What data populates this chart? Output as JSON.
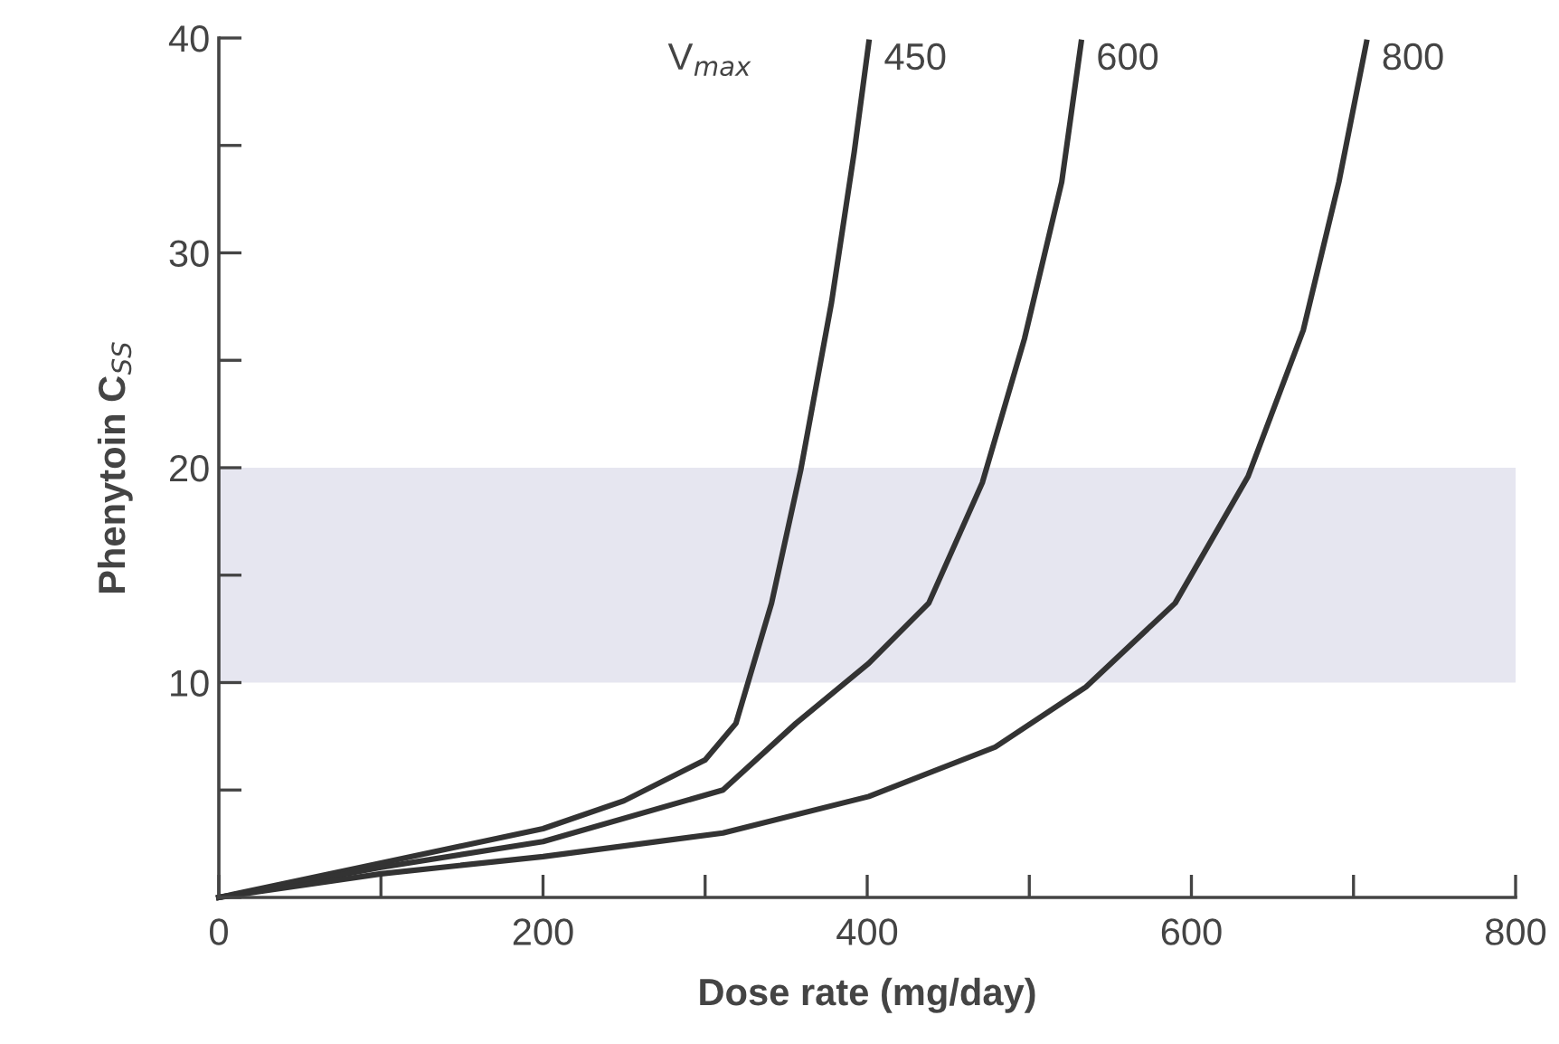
{
  "chart_data": {
    "type": "line",
    "xlabel": "Dose rate (mg/day)",
    "ylabel": "Phenytoin C$_{SS}$",
    "annotations": [
      "V$_{max}$"
    ],
    "xlim": [
      0,
      800
    ],
    "ylim": [
      0,
      40
    ],
    "xticks": [
      0,
      {
        "value": 100,
        "label": null
      },
      200,
      {
        "value": 300,
        "label": null
      },
      400,
      {
        "value": 500,
        "label": null
      },
      600,
      {
        "value": 700,
        "label": null
      },
      800
    ],
    "yticks": [
      {
        "value": 0,
        "label": null
      },
      {
        "value": 5,
        "label": null
      },
      10,
      {
        "value": 15,
        "label": null
      },
      20,
      {
        "value": 25,
        "label": null
      },
      30,
      {
        "value": 35,
        "label": null
      },
      40
    ],
    "grid": false,
    "legend": false,
    "marker": "none",
    "line_style": "solid",
    "bands": [
      {
        "axis": "y",
        "from": 10,
        "to": 20,
        "color": "#e6e6f0"
      }
    ],
    "series": [
      {
        "name": "450",
        "color": "#333333",
        "x": [
          0,
          100,
          200,
          250,
          300,
          319,
          341,
          359,
          378,
          392,
          401
        ],
        "values": [
          0,
          1.6,
          3.2,
          4.5,
          6.4,
          8.1,
          13.7,
          19.9,
          27.7,
          34.7,
          39.8
        ]
      },
      {
        "name": "600",
        "color": "#333333",
        "x": [
          0,
          100,
          200,
          311,
          356,
          401,
          438,
          471,
          497,
          520,
          532
        ],
        "values": [
          0,
          1.4,
          2.6,
          5.0,
          8.1,
          10.9,
          13.7,
          19.3,
          26.0,
          33.3,
          39.8
        ]
      },
      {
        "name": "800",
        "color": "#333333",
        "x": [
          0,
          100,
          200,
          311,
          401,
          479,
          535,
          590,
          635,
          669,
          691,
          708
        ],
        "values": [
          0,
          1.1,
          1.9,
          3.0,
          4.7,
          7.0,
          9.8,
          13.7,
          19.6,
          26.4,
          33.3,
          39.8
        ]
      }
    ]
  }
}
